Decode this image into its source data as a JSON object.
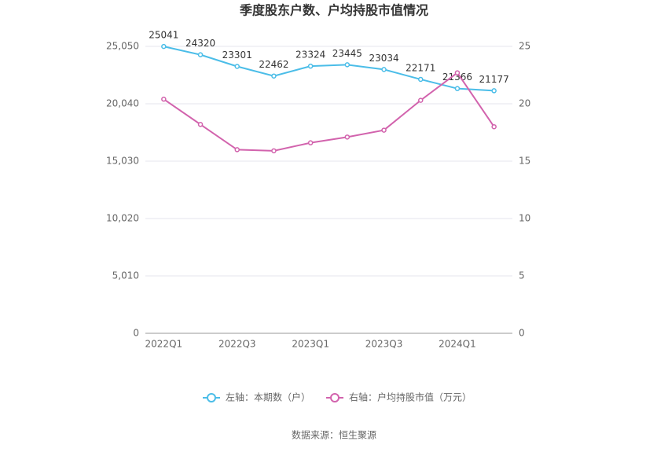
{
  "chart_data": {
    "type": "line",
    "title": "季度股东户数、户均持股市值情况",
    "source": "数据来源：恒生聚源",
    "categories": [
      "2022Q1",
      null,
      "2022Q3",
      null,
      "2023Q1",
      null,
      "2023Q3",
      null,
      "2024Q1",
      null
    ],
    "series": [
      {
        "name": "左轴：本期数（户）",
        "color": "#4bbde8",
        "values": [
          25041,
          24320,
          23301,
          22462,
          23324,
          23445,
          23034,
          22171,
          21366,
          21177
        ]
      },
      {
        "name": "右轴：户均持股市值（万元）",
        "color": "#d263ad",
        "axis": "y2",
        "values": [
          20.4,
          18.2,
          16.0,
          15.9,
          16.6,
          17.1,
          17.7,
          20.3,
          22.7,
          18.0
        ]
      }
    ],
    "ylim": [
      0,
      25050
    ],
    "yticks": [
      0,
      {
        "value": 5010,
        "label": "5,010"
      },
      {
        "value": 10020,
        "label": "10,020"
      },
      {
        "value": 15030,
        "label": "15,030"
      },
      {
        "value": 20040,
        "label": "20,040"
      },
      {
        "value": 25050,
        "label": "25,050"
      }
    ],
    "y2lim": [
      0,
      25
    ],
    "y2ticks": [
      0,
      5,
      10,
      15,
      20,
      25
    ],
    "grid": true,
    "legend": "bottom"
  }
}
